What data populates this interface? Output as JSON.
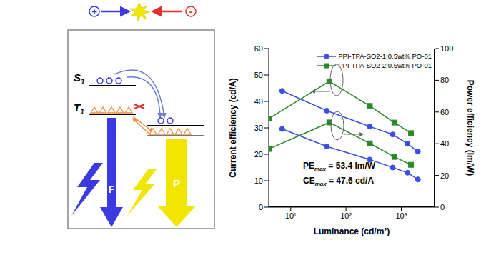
{
  "diagram": {
    "hole": "+",
    "electron": "-",
    "host_singlet": {
      "main": "S",
      "sub": "1"
    },
    "host_triplet": {
      "main": "T",
      "sub": "1"
    },
    "fluorescence": "F",
    "phosphorescence": "P"
  },
  "chart_data": {
    "type": "line",
    "log": "x",
    "grid": false,
    "legend": "upper right",
    "xlabel": "Luminance (cd/m²)",
    "ylabel": "Current efficiency (cd/A)",
    "y2label": "Power efficiency (lm/W)",
    "xlim": [
      4,
      4000
    ],
    "xticks": [
      {
        "value": 10,
        "label": "10¹"
      },
      {
        "value": 100,
        "label": "10²"
      },
      {
        "value": 1000,
        "label": "10³"
      }
    ],
    "ylim": [
      0,
      60
    ],
    "yticks": [
      0,
      10,
      20,
      30,
      40,
      50,
      60
    ],
    "y2lim": [
      0,
      100
    ],
    "y2ticks": [
      0,
      20,
      40,
      60,
      80,
      100
    ],
    "series": [
      {
        "name": "PPI-TPA-SO2-1:0.5wt% PO-01",
        "color": "#3b4fe0",
        "marker": "circle",
        "x": [
          7,
          45,
          270,
          700,
          1300,
          2000
        ],
        "values": [
          44,
          36.5,
          30.5,
          27.5,
          24,
          21
        ]
      },
      {
        "name": "PPI-TPA-SO2-1:0.5wt% PO-01",
        "color": "#3b4fe0",
        "marker": "circle",
        "axis": "y2",
        "x": [
          7,
          45,
          270,
          700,
          1300,
          2000
        ],
        "values": [
          49.3,
          38.3,
          30,
          25,
          21.7,
          17.5
        ]
      },
      {
        "name": "PPI-TPA-SO2-2:0.5wt% PO-01",
        "color": "#2a8a2a",
        "marker": "square",
        "x": [
          4,
          50,
          270,
          750,
          1500
        ],
        "values": [
          33.5,
          47.6,
          38.3,
          32,
          28
        ]
      },
      {
        "name": "PPI-TPA-SO2-2:0.5wt% PO-01",
        "color": "#2a8a2a",
        "marker": "square",
        "axis": "y2",
        "x": [
          4,
          50,
          270,
          750,
          1500
        ],
        "values": [
          36.7,
          53.4,
          40.2,
          31.7,
          26.7
        ]
      }
    ],
    "annotations": [
      {
        "main": "PE",
        "sub": "max",
        "rest": " = 53.4 lm/W"
      },
      {
        "main": "CE",
        "sub": "max",
        "rest": " = 47.6 cd/A"
      }
    ]
  }
}
